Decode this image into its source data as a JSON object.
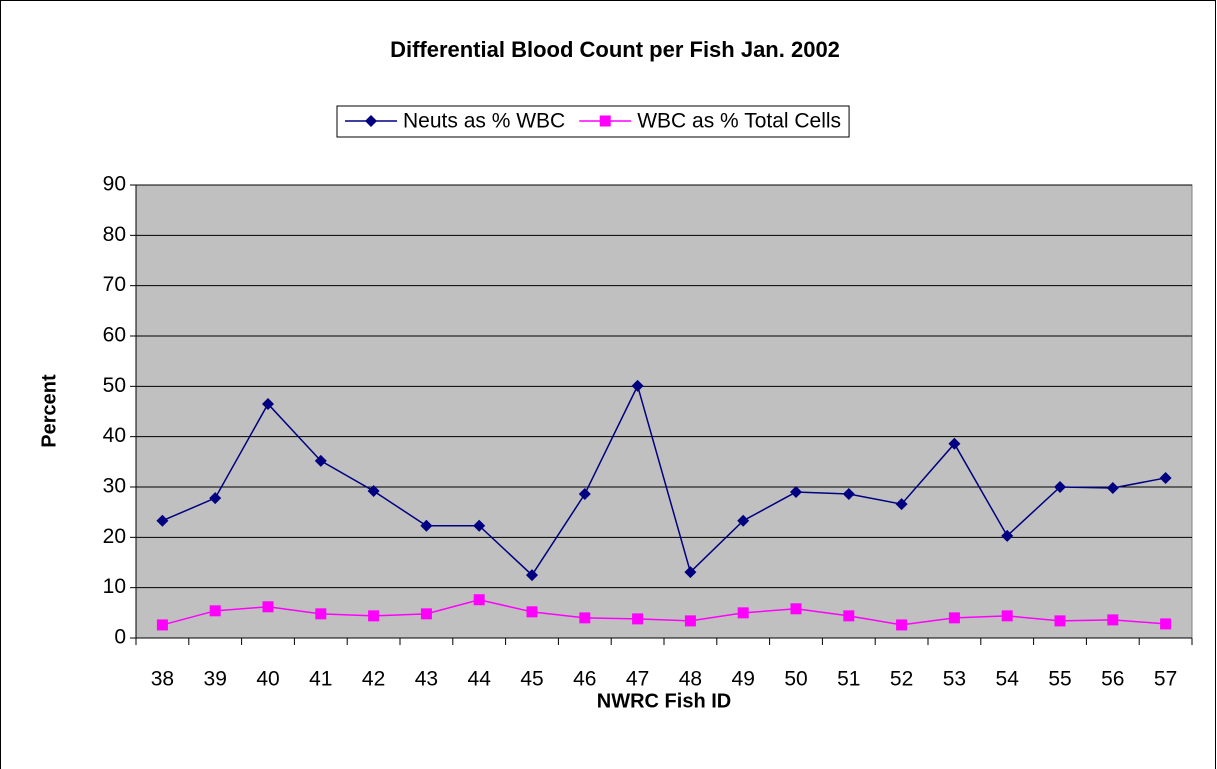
{
  "chart_data": {
    "type": "line",
    "title": "Differential Blood Count per Fish Jan. 2002",
    "x_label": "NWRC Fish ID",
    "y_label": "Percent",
    "categories": [
      "38",
      "39",
      "40",
      "41",
      "42",
      "43",
      "44",
      "45",
      "46",
      "47",
      "48",
      "49",
      "50",
      "51",
      "52",
      "53",
      "54",
      "55",
      "56",
      "57"
    ],
    "series": [
      {
        "name": "Neuts as % WBC",
        "color": "#000080",
        "marker": "diamond",
        "values": [
          23.3,
          27.8,
          46.5,
          35.2,
          29.2,
          22.3,
          22.3,
          12.5,
          28.6,
          50.1,
          13.1,
          23.3,
          29,
          28.6,
          26.6,
          38.6,
          20.3,
          30,
          29.8,
          31.8
        ]
      },
      {
        "name": "WBC as % Total Cells",
        "color": "#ff00ff",
        "marker": "square",
        "values": [
          2.6,
          5.4,
          6.2,
          4.8,
          4.4,
          4.8,
          7.6,
          5.2,
          4,
          3.8,
          3.4,
          5,
          5.8,
          4.4,
          2.6,
          4,
          4.4,
          3.4,
          3.6,
          2.8
        ]
      }
    ],
    "ylim": [
      0,
      90
    ],
    "yticks": [
      0,
      10,
      20,
      30,
      40,
      50,
      60,
      70,
      80,
      90
    ],
    "grid": true,
    "legend": "top",
    "plot_background": "#c0c0c0"
  }
}
